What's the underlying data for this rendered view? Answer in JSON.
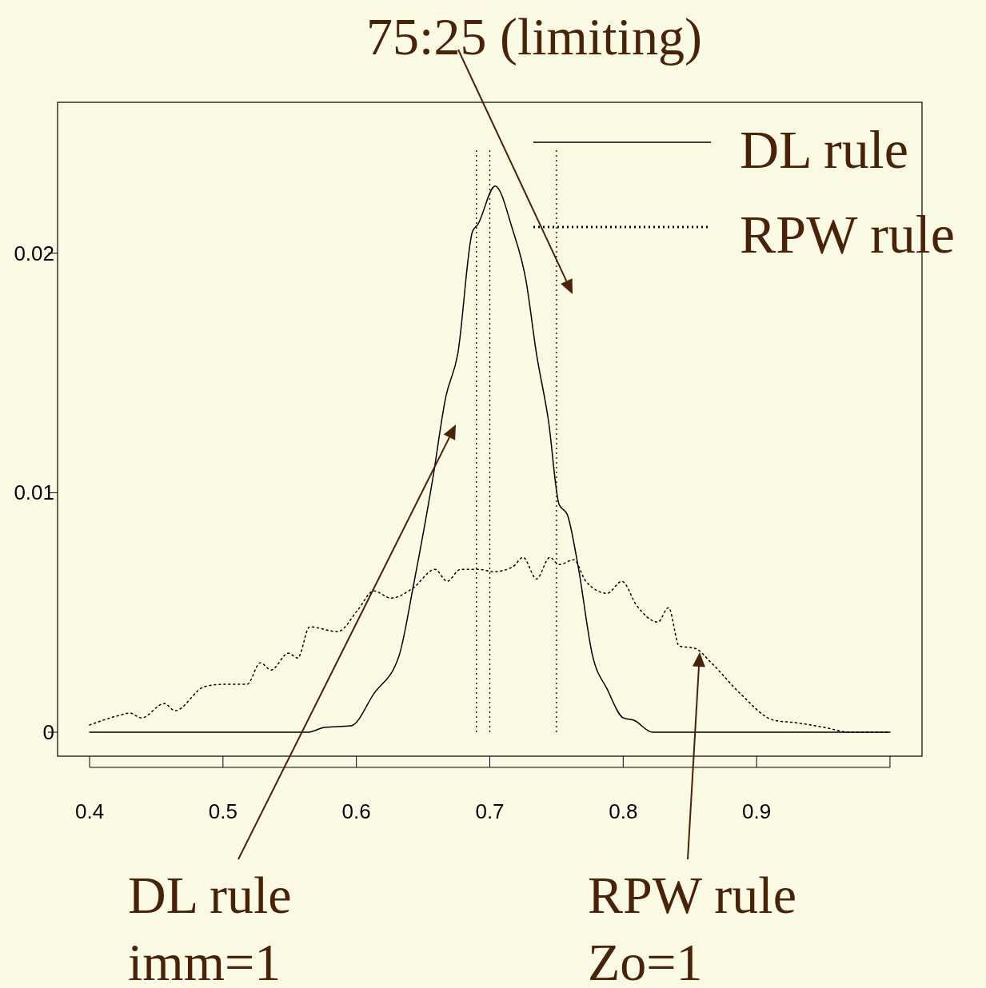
{
  "chart_data": {
    "type": "line",
    "x": [
      0.4,
      0.5637,
      0.576,
      0.596,
      0.613,
      0.632,
      0.643,
      0.657,
      0.667,
      0.676,
      0.687,
      0.691,
      0.704,
      0.717,
      0.727,
      0.735,
      0.744,
      0.752,
      0.758,
      0.766,
      0.777,
      0.788,
      0.8,
      0.808,
      0.822,
      1.0
    ],
    "series": [
      {
        "name": "DL rule",
        "color": "#000000",
        "line_style": "solid",
        "values": [
          0,
          0,
          0.0002,
          0.00027,
          0.0016,
          0.0032,
          0.0062,
          0.0105,
          0.014,
          0.0158,
          0.0209,
          0.0212,
          0.0228,
          0.021,
          0.0189,
          0.0158,
          0.013,
          0.0095,
          0.0091,
          0.007,
          0.0032,
          0.0018,
          0.0006,
          0.0005,
          0,
          0
        ]
      },
      {
        "name": "RPW rule",
        "color": "#000000",
        "line_style": "dotted",
        "x": [
          0.4,
          0.422,
          0.43,
          0.439,
          0.456,
          0.464,
          0.486,
          0.5,
          0.518,
          0.528,
          0.536,
          0.549,
          0.556,
          0.565,
          0.586,
          0.601,
          0.613,
          0.626,
          0.642,
          0.659,
          0.668,
          0.678,
          0.692,
          0.703,
          0.717,
          0.725,
          0.735,
          0.745,
          0.752,
          0.763,
          0.772,
          0.788,
          0.799,
          0.81,
          0.826,
          0.834,
          0.842,
          0.854,
          0.866,
          0.888,
          0.913,
          0.929,
          0.951,
          0.97,
          1.0
        ],
        "values": [
          0.0003,
          0.0007,
          0.0008,
          0.0006,
          0.0012,
          0.0009,
          0.0019,
          0.002,
          0.002,
          0.0029,
          0.0026,
          0.0033,
          0.0031,
          0.0044,
          0.0042,
          0.0051,
          0.0059,
          0.0056,
          0.006,
          0.0068,
          0.0063,
          0.0068,
          0.0068,
          0.0067,
          0.0069,
          0.0073,
          0.0064,
          0.0073,
          0.007,
          0.0072,
          0.0063,
          0.0058,
          0.0063,
          0.0053,
          0.0046,
          0.0052,
          0.0036,
          0.0035,
          0.0029,
          0.0016,
          0.0005,
          0.0004,
          0.0002,
          0,
          0
        ]
      }
    ],
    "xlim": [
      0.376,
      1.024
    ],
    "ylim": [
      -0.001,
      0.0263
    ],
    "xticks": [
      0.4,
      0.5,
      0.6,
      0.7,
      0.8,
      0.9,
      {
        "value": 1.0,
        "label": null
      }
    ],
    "yticks": [
      0,
      0.01,
      0.02
    ],
    "ref_lines": [
      {
        "axis": "x",
        "value": 0.69,
        "line_style": "dotted",
        "color": "#000000"
      },
      {
        "axis": "x",
        "value": 0.7,
        "line_style": "dotted",
        "color": "#000000"
      },
      {
        "axis": "x",
        "value": 0.75,
        "line_style": "dotted",
        "color": "#000000"
      }
    ],
    "annotations": [
      "75:25 (limiting)",
      "DL rule\nimm=1",
      "RPW rule\nZo=1"
    ],
    "legend": "top right",
    "grid": false
  }
}
